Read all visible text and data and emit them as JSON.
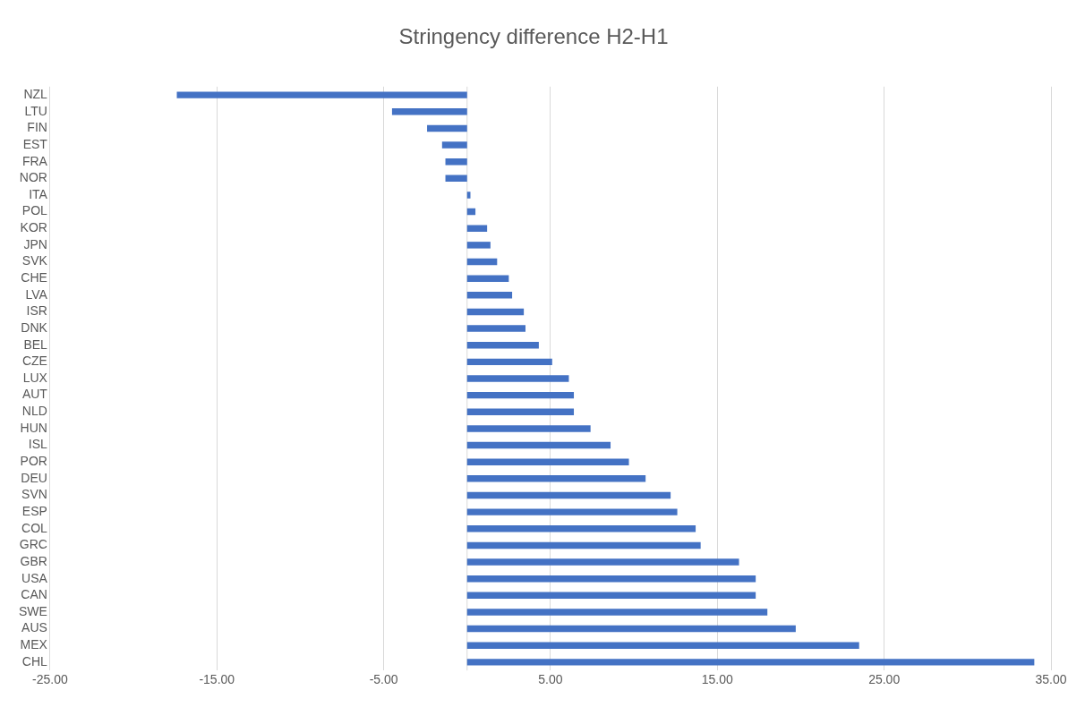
{
  "chart_data": {
    "type": "bar",
    "orientation": "horizontal",
    "title": "Stringency difference H2-H1",
    "categories": [
      "NZL",
      "LTU",
      "FIN",
      "EST",
      "FRA",
      "NOR",
      "ITA",
      "POL",
      "KOR",
      "JPN",
      "SVK",
      "CHE",
      "LVA",
      "ISR",
      "DNK",
      "BEL",
      "CZE",
      "LUX",
      "AUT",
      "NLD",
      "HUN",
      "ISL",
      "POR",
      "DEU",
      "SVN",
      "ESP",
      "COL",
      "GRC",
      "GBR",
      "USA",
      "CAN",
      "SWE",
      "AUS",
      "MEX",
      "CHL"
    ],
    "values": [
      -17.4,
      -4.5,
      -2.4,
      -1.5,
      -1.3,
      -1.3,
      0.2,
      0.5,
      1.2,
      1.4,
      1.8,
      2.5,
      2.7,
      3.4,
      3.5,
      4.3,
      5.1,
      6.1,
      6.4,
      6.4,
      7.4,
      8.6,
      9.7,
      10.7,
      12.2,
      12.6,
      13.7,
      14.0,
      16.3,
      17.3,
      17.3,
      18.0,
      19.7,
      23.5,
      34.0
    ],
    "color": "#4472c4",
    "xlim": [
      -25,
      35
    ],
    "xticks": [
      {
        "value": -25,
        "label": "-25.00"
      },
      {
        "value": -15,
        "label": "-15.00"
      },
      {
        "value": -5,
        "label": "-5.00"
      },
      {
        "value": 5,
        "label": "5.00"
      },
      {
        "value": 15,
        "label": "15.00"
      },
      {
        "value": 25,
        "label": "25.00"
      },
      {
        "value": 35,
        "label": "35.00"
      }
    ],
    "grid": "x"
  }
}
